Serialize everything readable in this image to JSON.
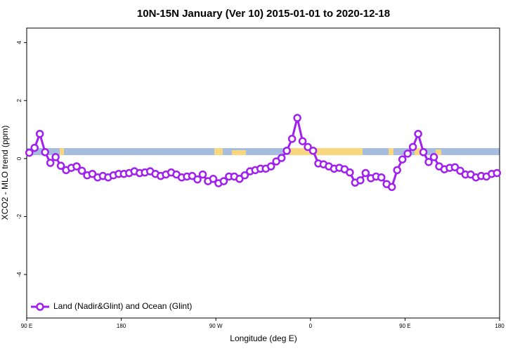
{
  "chart_data": {
    "type": "line",
    "title": "10N-15N January (Ver 10)   2015-01-01 to 2020-12-18",
    "x_label": "Longitude (deg E)",
    "y_label": "XCO2 - MLO trend (ppm)",
    "x": [
      92.5,
      97.5,
      102.5,
      107.5,
      112.5,
      117.5,
      122.5,
      127.5,
      132.5,
      137.5,
      142.5,
      147.5,
      152.5,
      157.5,
      162.5,
      167.5,
      172.5,
      177.5,
      182.5,
      187.5,
      192.5,
      197.5,
      202.5,
      207.5,
      212.5,
      217.5,
      222.5,
      227.5,
      232.5,
      237.5,
      242.5,
      247.5,
      252.5,
      257.5,
      262.5,
      267.5,
      272.5,
      277.5,
      282.5,
      287.5,
      292.5,
      297.5,
      302.5,
      307.5,
      312.5,
      317.5,
      322.5,
      327.5,
      332.5,
      337.5,
      342.5,
      347.5,
      352.5,
      357.5,
      362.5,
      367.5,
      372.5,
      377.5,
      382.5,
      387.5,
      392.5,
      397.5,
      402.5,
      407.5,
      412.5,
      417.5,
      422.5,
      427.5,
      432.5,
      437.5,
      442.5,
      447.5,
      452.5,
      457.5,
      462.5,
      467.5,
      472.5,
      477.5,
      482.5,
      487.5,
      492.5,
      497.5,
      502.5,
      507.5,
      512.5,
      517.5,
      522.5,
      527.5,
      532.5,
      537.5
    ],
    "series": [
      {
        "name": "Land (Nadir&Glint) and Ocean (Glint)",
        "color": "#a020f0",
        "values": [
          0.2,
          0.37,
          0.85,
          0.22,
          -0.15,
          0.05,
          -0.25,
          -0.4,
          -0.32,
          -0.27,
          -0.42,
          -0.58,
          -0.53,
          -0.65,
          -0.6,
          -0.65,
          -0.58,
          -0.53,
          -0.53,
          -0.5,
          -0.44,
          -0.5,
          -0.48,
          -0.44,
          -0.53,
          -0.6,
          -0.55,
          -0.48,
          -0.55,
          -0.65,
          -0.62,
          -0.6,
          -0.72,
          -0.55,
          -0.78,
          -0.7,
          -0.85,
          -0.78,
          -0.62,
          -0.62,
          -0.7,
          -0.58,
          -0.44,
          -0.4,
          -0.35,
          -0.35,
          -0.27,
          -0.1,
          0.02,
          0.27,
          0.68,
          1.4,
          0.6,
          0.4,
          0.27,
          -0.17,
          -0.2,
          -0.27,
          -0.35,
          -0.32,
          -0.37,
          -0.48,
          -0.83,
          -0.75,
          -0.5,
          -0.68,
          -0.62,
          -0.65,
          -0.88,
          -0.98,
          -0.4,
          -0.03,
          0.17,
          0.4,
          0.85,
          0.22,
          -0.12,
          0.05,
          -0.27,
          -0.37,
          -0.32,
          -0.3,
          -0.42,
          -0.55,
          -0.55,
          -0.65,
          -0.6,
          -0.62,
          -0.53,
          -0.5
        ]
      }
    ],
    "xlim": [
      90,
      540
    ],
    "xticks": [
      {
        "value": 90,
        "label": "90 E"
      },
      180,
      {
        "value": 270,
        "label": "90 W"
      },
      {
        "value": 360,
        "label": "0"
      },
      {
        "value": 450,
        "label": "90 E"
      },
      {
        "value": 540,
        "label": "180"
      }
    ],
    "ylim": [
      -5.5,
      4.5
    ],
    "yticks": [
      4,
      2,
      0,
      -2,
      -4
    ],
    "legend": "bottom-left"
  }
}
